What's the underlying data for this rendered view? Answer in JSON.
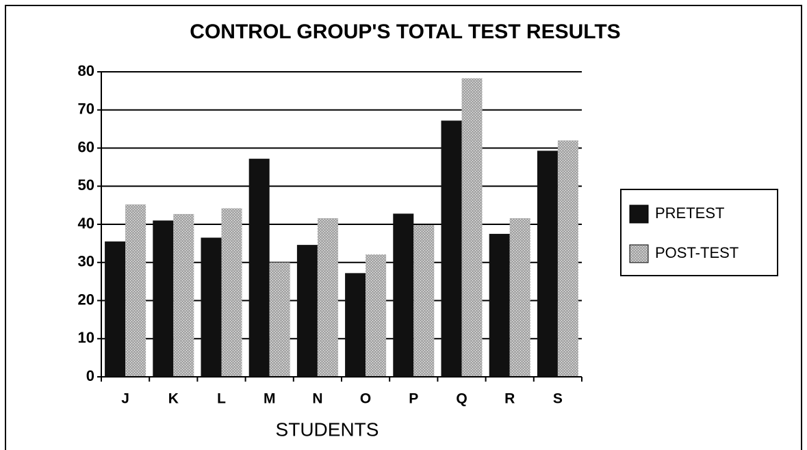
{
  "chart_data": {
    "type": "bar",
    "title": "CONTROL GROUP'S TOTAL TEST RESULTS",
    "x_label": "STUDENTS",
    "categories": [
      "J",
      "K",
      "L",
      "M",
      "N",
      "O",
      "P",
      "Q",
      "R",
      "S"
    ],
    "series": [
      {
        "name": "PRETEST",
        "color": "#111111",
        "values": [
          35.5,
          41,
          36.5,
          57.2,
          34.6,
          27.2,
          42.8,
          67.2,
          37.5,
          59.3
        ]
      },
      {
        "name": "POST-TEST",
        "color": "#a8a8a8",
        "values": [
          45.2,
          42.7,
          44.2,
          30,
          41.6,
          32.1,
          39.8,
          78.3,
          41.6,
          62
        ]
      }
    ],
    "ylim": [
      0,
      80
    ],
    "yticks": [
      0,
      10,
      20,
      30,
      40,
      50,
      60,
      70,
      80
    ],
    "grid": true,
    "legend": "right"
  }
}
